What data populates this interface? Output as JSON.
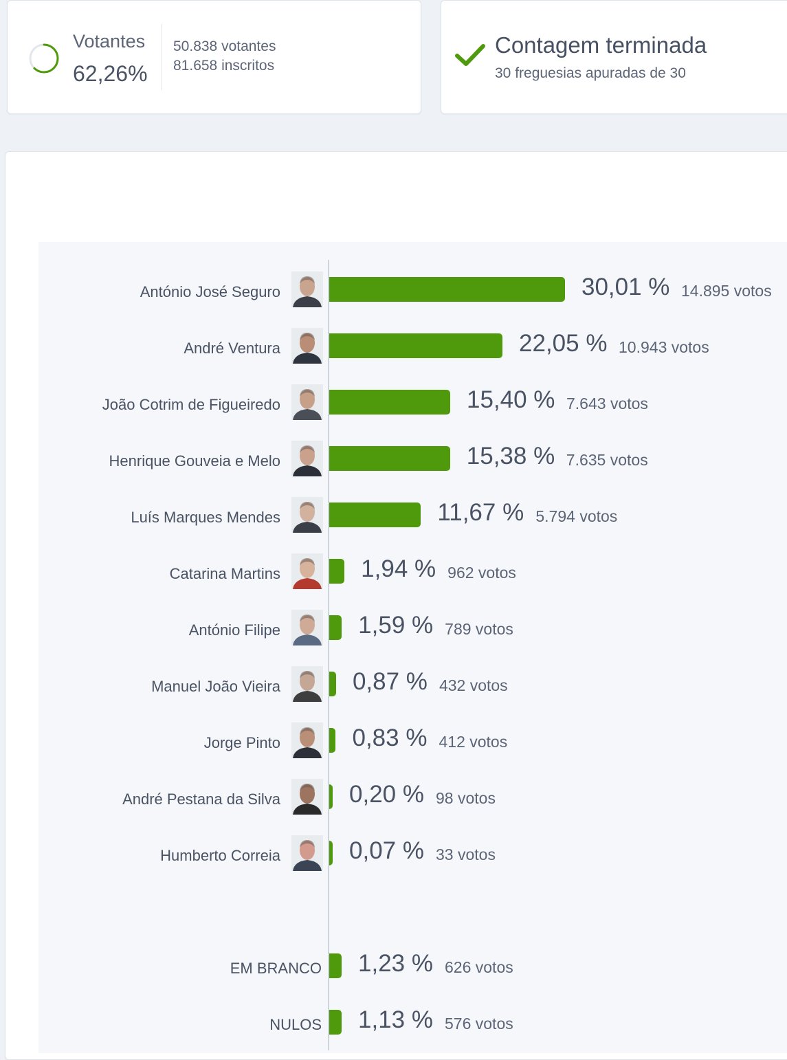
{
  "turnout": {
    "label": "Votantes",
    "percent": "62,26%",
    "voters": "50.838 votantes",
    "registered": "81.658 inscritos",
    "ratio": 0.6226
  },
  "count_status": {
    "title": "Contagem terminada",
    "subtitle": "30 freguesias apuradas de 30"
  },
  "colors": {
    "bar": "#4f9a0c",
    "check": "#4f9a0c",
    "spinner": "#4f9a0c"
  },
  "chart_data": {
    "type": "bar",
    "orientation": "horizontal",
    "categories": [
      "António José Seguro",
      "André Ventura",
      "João Cotrim de Figueiredo",
      "Henrique Gouveia e Melo",
      "Luís Marques Mendes",
      "Catarina Martins",
      "António Filipe",
      "Manuel João Vieira",
      "Jorge Pinto",
      "André Pestana da Silva",
      "Humberto Correia",
      "EM BRANCO",
      "NULOS"
    ],
    "values": [
      30.01,
      22.05,
      15.4,
      15.38,
      11.67,
      1.94,
      1.59,
      0.87,
      0.83,
      0.2,
      0.07,
      1.23,
      1.13
    ],
    "value_labels": [
      "30,01 %",
      "22,05 %",
      "15,40 %",
      "15,38 %",
      "11,67 %",
      "1,94 %",
      "1,59 %",
      "0,87 %",
      "0,83 %",
      "0,20 %",
      "0,07 %",
      "1,23 %",
      "1,13 %"
    ],
    "votes": [
      "14.895 votos",
      "10.943 votos",
      "7.643 votos",
      "7.635 votos",
      "5.794 votos",
      "962 votos",
      "789 votos",
      "432 votos",
      "412 votos",
      "98 votos",
      "33 votos",
      "626 votos",
      "576 votos"
    ],
    "has_photo": [
      true,
      true,
      true,
      true,
      true,
      true,
      true,
      true,
      true,
      true,
      true,
      false,
      false
    ],
    "photo_icons": [
      "candidate-photo",
      "candidate-photo",
      "candidate-photo",
      "candidate-photo",
      "candidate-photo",
      "candidate-photo",
      "candidate-photo",
      "candidate-photo",
      "candidate-photo",
      "candidate-photo",
      "candidate-photo",
      null,
      null
    ],
    "grid": false,
    "legend": "none"
  }
}
